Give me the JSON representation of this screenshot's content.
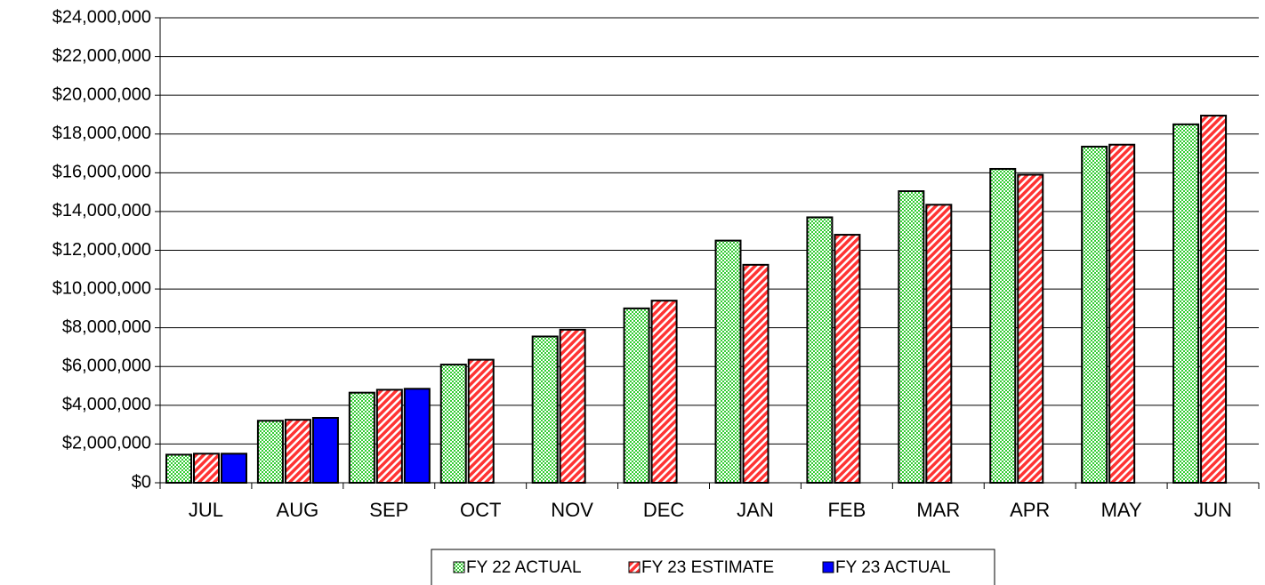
{
  "chart_data": {
    "type": "bar",
    "categories": [
      "JUL",
      "AUG",
      "SEP",
      "OCT",
      "NOV",
      "DEC",
      "JAN",
      "FEB",
      "MAR",
      "APR",
      "MAY",
      "JUN"
    ],
    "series": [
      {
        "name": "FY 22 ACTUAL",
        "color": "#33cc33",
        "pattern": "checker",
        "values": [
          1450000,
          3200000,
          4650000,
          6100000,
          7550000,
          9000000,
          12500000,
          13700000,
          15050000,
          16200000,
          17350000,
          18500000
        ]
      },
      {
        "name": "FY 23 ESTIMATE",
        "color": "#ff3333",
        "pattern": "stripes",
        "values": [
          1500000,
          3250000,
          4800000,
          6350000,
          7900000,
          9400000,
          11250000,
          12800000,
          14350000,
          15900000,
          17450000,
          18950000
        ]
      },
      {
        "name": "FY 23 ACTUAL",
        "color": "#0000ff",
        "pattern": "solid",
        "values": [
          1500000,
          3350000,
          4850000,
          null,
          null,
          null,
          null,
          null,
          null,
          null,
          null,
          null
        ]
      }
    ],
    "ylim": [
      0,
      24000000
    ],
    "yticks": [
      {
        "value": 0,
        "label": "$0"
      },
      {
        "value": 2000000,
        "label": "$2,000,000"
      },
      {
        "value": 4000000,
        "label": "$4,000,000"
      },
      {
        "value": 6000000,
        "label": "$6,000,000"
      },
      {
        "value": 8000000,
        "label": "$8,000,000"
      },
      {
        "value": 10000000,
        "label": "$10,000,000"
      },
      {
        "value": 12000000,
        "label": "$12,000,000"
      },
      {
        "value": 14000000,
        "label": "$14,000,000"
      },
      {
        "value": 16000000,
        "label": "$16,000,000"
      },
      {
        "value": 18000000,
        "label": "$18,000,000"
      },
      {
        "value": 20000000,
        "label": "$20,000,000"
      },
      {
        "value": 22000000,
        "label": "$22,000,000"
      },
      {
        "value": 24000000,
        "label": "$24,000,000"
      }
    ],
    "grid": true,
    "legend": "bottom"
  }
}
